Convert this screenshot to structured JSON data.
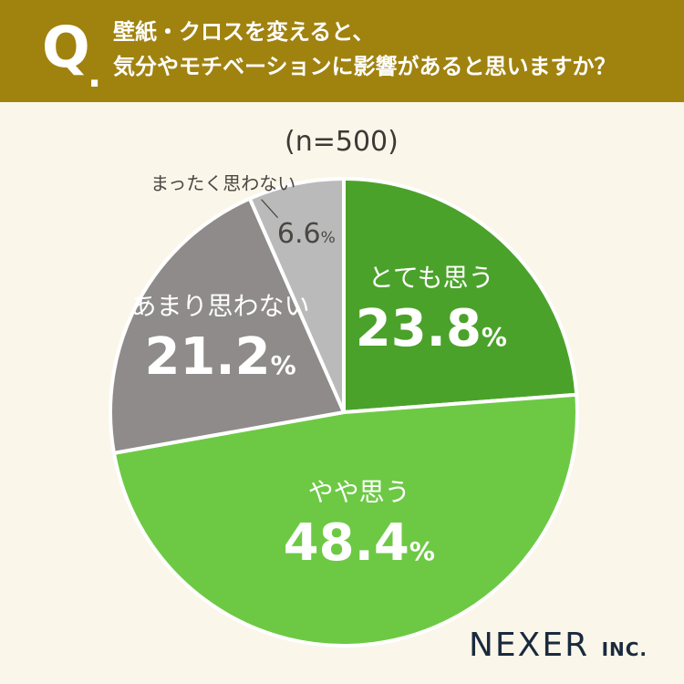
{
  "header": {
    "q": "Q",
    "dot": ".",
    "line1": "壁紙・クロスを変えると、",
    "line2": "気分やモチベーションに影響があると思いますか？"
  },
  "n_label": "(n=500)",
  "chart_data": {
    "type": "pie",
    "title": "壁紙・クロスを変えると、気分やモチベーションに影響があると思いますか？",
    "n": 500,
    "slices": [
      {
        "label": "とても思う",
        "value": 23.8,
        "display": "23.8",
        "color": "#4ba22a"
      },
      {
        "label": "やや思う",
        "value": 48.4,
        "display": "48.4",
        "color": "#6dc944"
      },
      {
        "label": "あまり思わない",
        "value": 21.2,
        "display": "21.2",
        "color": "#8e8b8a"
      },
      {
        "label": "まったく思わない",
        "value": 6.6,
        "display": "6.6",
        "color": "#bababa"
      }
    ],
    "unit": "%",
    "start": "12 o'clock",
    "direction": "clockwise"
  },
  "logo": {
    "main": "NEXER",
    "suffix": "INC."
  }
}
